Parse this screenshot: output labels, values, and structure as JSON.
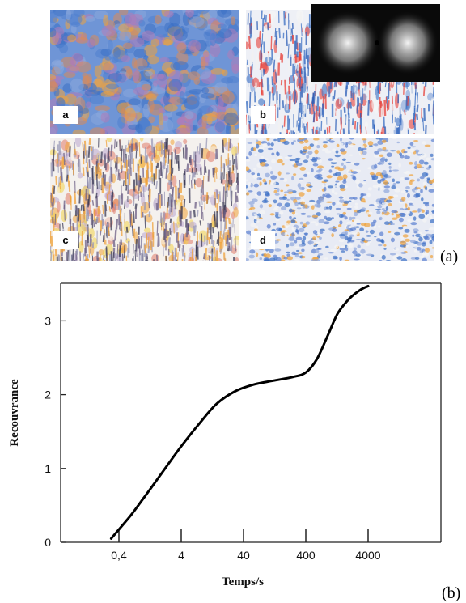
{
  "figure": {
    "panel_labels": [
      "a",
      "b",
      "c",
      "d"
    ],
    "label_a": "(a)",
    "label_b": "(b)"
  },
  "colors": {
    "blue": "#3b6fc4",
    "red": "#e8413a",
    "orange": "#f0a23a",
    "yellow": "#f2d24a",
    "curve": "#000000"
  },
  "chart_data": {
    "type": "line",
    "xlabel": "Temps/s",
    "ylabel": "Recouvrance",
    "x_scale": "log",
    "x_ticks": [
      0.4,
      4,
      40,
      400,
      4000
    ],
    "x_tick_labels": [
      "0,4",
      "4",
      "40",
      "400",
      "4000"
    ],
    "y_ticks": [
      0,
      1,
      2,
      3
    ],
    "y_tick_labels": [
      "0",
      "1",
      "2",
      "3"
    ],
    "ylim": [
      0,
      3.5
    ],
    "series": [
      {
        "x": [
          0.3,
          0.6,
          1,
          2,
          4,
          8,
          15,
          30,
          60,
          120,
          250,
          400,
          600,
          900,
          1300,
          2000,
          3000,
          4000
        ],
        "y": [
          0.05,
          0.35,
          0.6,
          0.95,
          1.3,
          1.62,
          1.88,
          2.05,
          2.14,
          2.19,
          2.24,
          2.3,
          2.48,
          2.8,
          3.1,
          3.3,
          3.42,
          3.47
        ]
      }
    ],
    "grid": false
  }
}
